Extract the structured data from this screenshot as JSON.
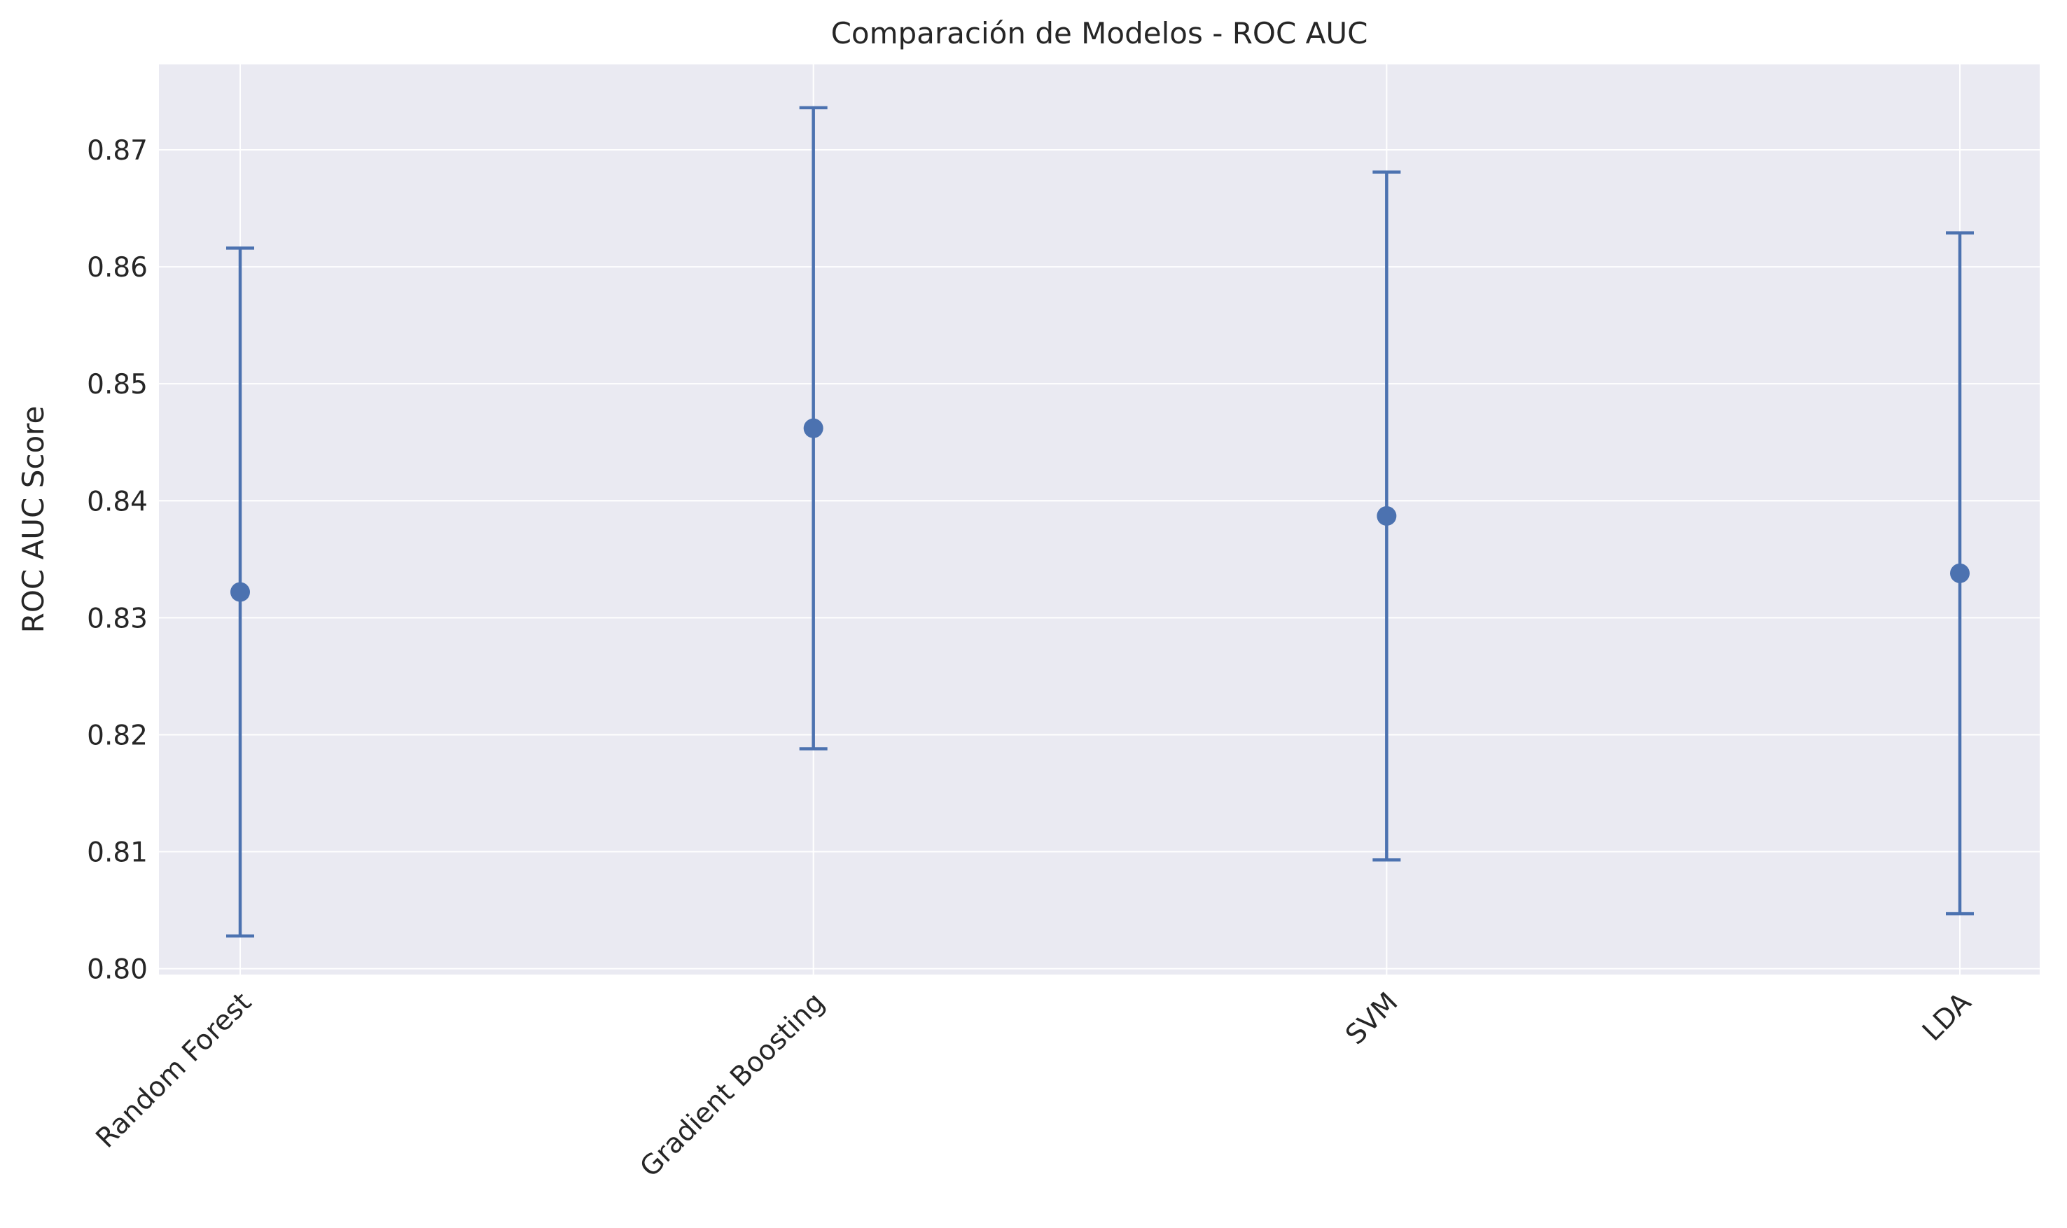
{
  "chart_data": {
    "type": "errorbar",
    "title": "Comparación de Modelos - ROC AUC",
    "xlabel": "",
    "ylabel": "ROC AUC Score",
    "categories": [
      "Random Forest",
      "Gradient Boosting",
      "SVM",
      "LDA"
    ],
    "series": [
      {
        "values": [
          0.8322,
          0.8462,
          0.8387,
          0.8338
        ],
        "errors": [
          0.0294,
          0.0274,
          0.0294,
          0.0291
        ]
      }
    ],
    "ylim": [
      0.7995,
      0.8773
    ],
    "yticks": [
      "0.80",
      "0.81",
      "0.82",
      "0.83",
      "0.84",
      "0.85",
      "0.86",
      "0.87"
    ],
    "grid": true,
    "legend": "none",
    "colors": {
      "series": "#4c72b0",
      "plot_background": "#eaeaf2",
      "grid": "#ffffff",
      "text": "#262626"
    }
  }
}
